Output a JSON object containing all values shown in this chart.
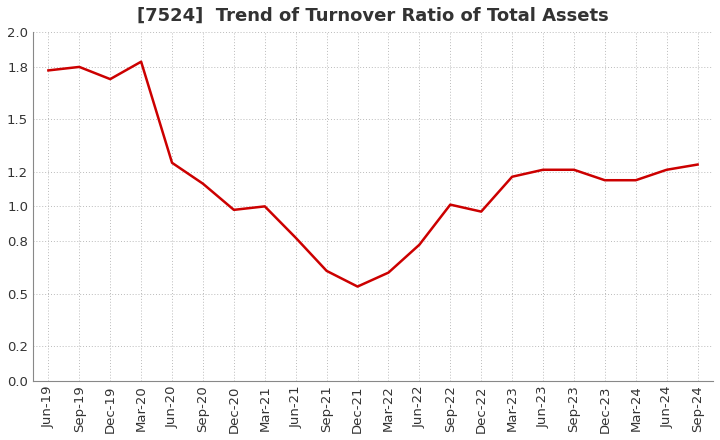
{
  "title": "[7524]  Trend of Turnover Ratio of Total Assets",
  "labels": [
    "Jun-19",
    "Sep-19",
    "Dec-19",
    "Mar-20",
    "Jun-20",
    "Sep-20",
    "Dec-20",
    "Mar-21",
    "Jun-21",
    "Sep-21",
    "Dec-21",
    "Mar-22",
    "Jun-22",
    "Sep-22",
    "Dec-22",
    "Mar-23",
    "Jun-23",
    "Sep-23",
    "Dec-23",
    "Mar-24",
    "Jun-24",
    "Sep-24"
  ],
  "values": [
    1.78,
    1.8,
    1.73,
    1.83,
    1.25,
    1.13,
    0.98,
    1.0,
    0.82,
    0.63,
    0.54,
    0.62,
    0.78,
    1.01,
    0.97,
    1.17,
    1.21,
    1.21,
    1.15,
    1.15,
    1.21,
    1.24
  ],
  "ylim": [
    0.0,
    2.0
  ],
  "yticks": [
    0.0,
    0.2,
    0.5,
    0.8,
    1.0,
    1.2,
    1.5,
    1.8,
    2.0
  ],
  "ytick_labels": [
    "0.0",
    "0.2",
    "0.5",
    "0.8",
    "1.0",
    "1.2",
    "1.5",
    "1.8",
    "2.0"
  ],
  "line_color": "#cc0000",
  "line_width": 1.8,
  "grid_color": "#bbbbbb",
  "bg_color": "#ffffff",
  "title_fontsize": 13,
  "tick_fontsize": 9.5,
  "title_color": "#333333"
}
